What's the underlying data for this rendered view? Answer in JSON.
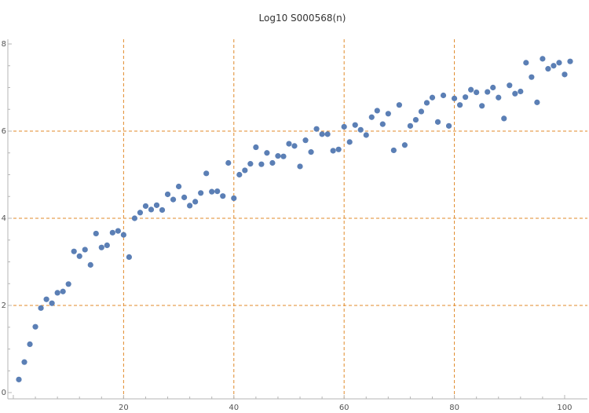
{
  "chart_data": {
    "type": "scatter",
    "title": "Log10 S000568(n)",
    "xlabel": "",
    "ylabel": "",
    "xlim": [
      0,
      102
    ],
    "ylim": [
      0,
      8
    ],
    "x_ticks": [
      20,
      40,
      60,
      80,
      100
    ],
    "y_ticks": [
      0,
      2,
      4,
      6,
      8
    ],
    "grid": true,
    "grid_lines_x": [
      20,
      40,
      60,
      80
    ],
    "grid_lines_y": [
      2,
      4,
      6
    ],
    "colors": {
      "points": "#5b7fb5",
      "grid": "#e08a2a",
      "axis": "#b5b5b5",
      "text": "#555555"
    },
    "x": [
      1,
      2,
      3,
      4,
      5,
      6,
      7,
      8,
      9,
      10,
      11,
      12,
      13,
      14,
      15,
      16,
      17,
      18,
      19,
      20,
      21,
      22,
      23,
      24,
      25,
      26,
      27,
      28,
      29,
      30,
      31,
      32,
      33,
      34,
      35,
      36,
      37,
      38,
      39,
      40,
      41,
      42,
      43,
      44,
      45,
      46,
      47,
      48,
      49,
      50,
      51,
      52,
      53,
      54,
      55,
      56,
      57,
      58,
      59,
      60,
      61,
      62,
      63,
      64,
      65,
      66,
      67,
      68,
      69,
      70,
      71,
      72,
      73,
      74,
      75,
      76,
      77,
      78,
      79,
      80,
      81,
      82,
      83,
      84,
      85,
      86,
      87,
      88,
      89,
      90,
      91,
      92,
      93,
      94,
      95,
      96,
      97,
      98,
      99,
      100,
      101
    ],
    "y": [
      0.3,
      0.7,
      1.11,
      1.51,
      1.94,
      2.14,
      2.05,
      2.29,
      2.32,
      2.49,
      3.24,
      3.13,
      3.28,
      2.93,
      3.65,
      3.33,
      3.38,
      3.67,
      3.71,
      3.62,
      3.11,
      4.0,
      4.13,
      4.28,
      4.2,
      4.3,
      4.19,
      4.55,
      4.43,
      4.73,
      4.48,
      4.29,
      4.38,
      4.58,
      5.03,
      4.61,
      4.62,
      4.51,
      5.27,
      4.46,
      5.0,
      5.1,
      5.25,
      5.63,
      5.24,
      5.5,
      5.27,
      5.43,
      5.42,
      5.71,
      5.66,
      5.19,
      5.79,
      5.52,
      6.05,
      5.93,
      5.93,
      5.55,
      5.58,
      6.1,
      5.75,
      6.14,
      6.03,
      5.91,
      6.32,
      6.47,
      6.16,
      6.4,
      5.56,
      6.6,
      5.68,
      6.12,
      6.26,
      6.45,
      6.65,
      6.77,
      6.21,
      6.82,
      6.12,
      6.75,
      6.6,
      6.78,
      6.95,
      6.89,
      6.58,
      6.9,
      7.0,
      6.77,
      6.29,
      7.05,
      6.86,
      6.91,
      7.57,
      7.24,
      6.66,
      7.66,
      7.43,
      7.5,
      7.57,
      7.3,
      7.6
    ]
  }
}
